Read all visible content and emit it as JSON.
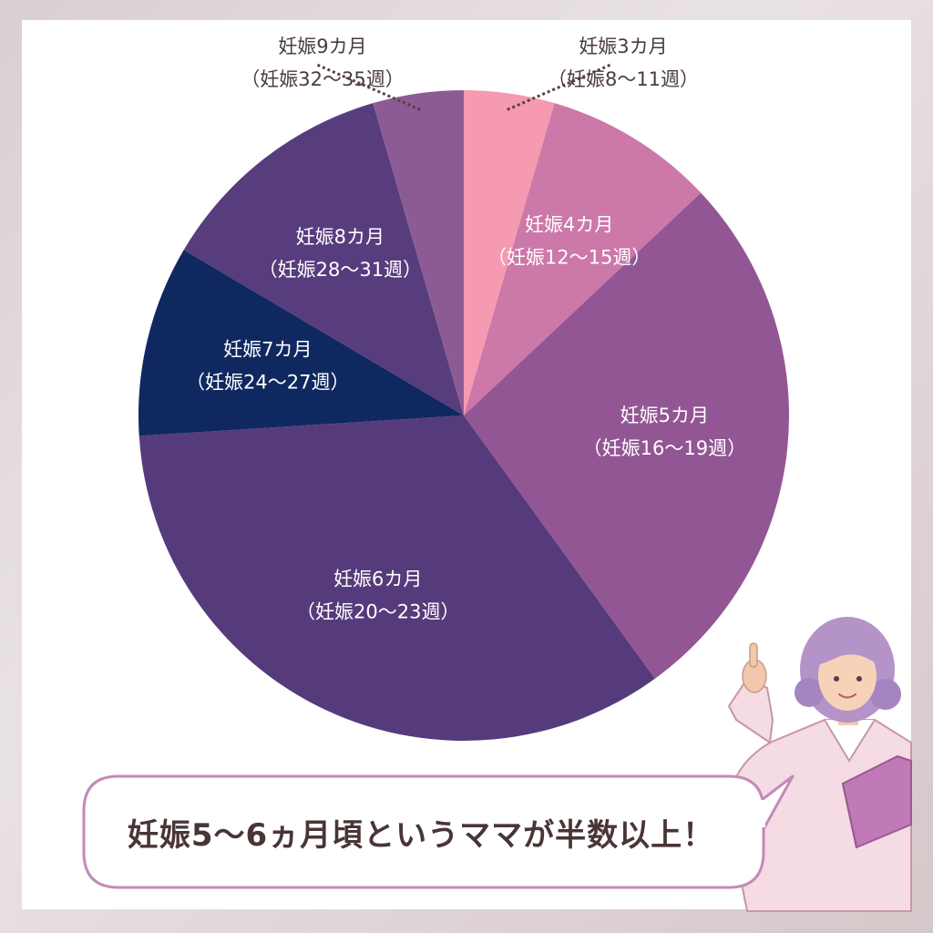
{
  "colors": {
    "background_card": "#ffffff",
    "label_dark": "#4a3b3c",
    "label_light": "#ffffff",
    "callout_border": "#c48ab8",
    "callout_text": "#4a3536"
  },
  "chart_data": {
    "type": "pie",
    "title": "",
    "start": "top",
    "direction": "clockwise",
    "slices": [
      {
        "line1": "妊娠3カ月",
        "line2": "（妊娠8〜11週）",
        "value": 4.5,
        "color": "#f59ab1",
        "label_color": "#4a3b3c",
        "leader": true
      },
      {
        "line1": "妊娠4カ月",
        "line2": "（妊娠12〜15週）",
        "value": 8.5,
        "color": "#cc78a9",
        "label_color": "#ffffff",
        "leader": false
      },
      {
        "line1": "妊娠5カ月",
        "line2": "（妊娠16〜19週）",
        "value": 27.0,
        "color": "#935694",
        "label_color": "#ffffff",
        "leader": false
      },
      {
        "line1": "妊娠6カ月",
        "line2": "（妊娠20〜23週）",
        "value": 34.0,
        "color": "#553b7b",
        "label_color": "#ffffff",
        "leader": false
      },
      {
        "line1": "妊娠7カ月",
        "line2": "（妊娠24〜27週）",
        "value": 9.5,
        "color": "#102860",
        "label_color": "#ffffff",
        "leader": false
      },
      {
        "line1": "妊娠8カ月",
        "line2": "（妊娠28〜31週）",
        "value": 12.0,
        "color": "#573d7d",
        "label_color": "#ffffff",
        "leader": false
      },
      {
        "line1": "妊娠9カ月",
        "line2": "（妊娠32〜35週）",
        "value": 4.5,
        "color": "#8d5b93",
        "label_color": "#4a3b3c",
        "leader": true
      }
    ]
  },
  "callout": {
    "text": "妊娠5〜6ヵ月頃というママが半数以上！"
  },
  "illustration": {
    "icon": "doctor-woman-pointing-icon"
  }
}
